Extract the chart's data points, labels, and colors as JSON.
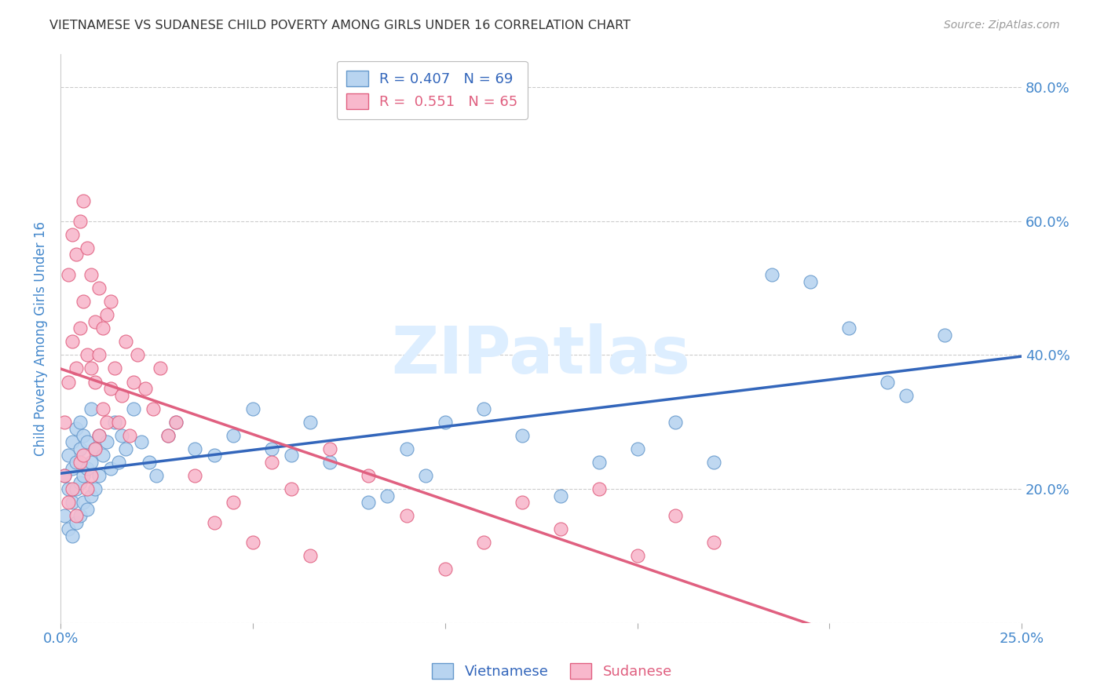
{
  "title": "VIETNAMESE VS SUDANESE CHILD POVERTY AMONG GIRLS UNDER 16 CORRELATION CHART",
  "source": "Source: ZipAtlas.com",
  "ylabel": "Child Poverty Among Girls Under 16",
  "xlim": [
    0.0,
    0.25
  ],
  "ylim": [
    0.0,
    0.85
  ],
  "xticks": [
    0.0,
    0.05,
    0.1,
    0.15,
    0.2,
    0.25
  ],
  "xticklabels": [
    "0.0%",
    "",
    "",
    "",
    "",
    "25.0%"
  ],
  "yticks": [
    0.0,
    0.2,
    0.4,
    0.6,
    0.8
  ],
  "yticklabels": [
    "",
    "20.0%",
    "40.0%",
    "60.0%",
    "80.0%"
  ],
  "vietnamese_label": "Vietnamese",
  "sudanese_label": "Sudanese",
  "viet_color": "#b8d4f0",
  "viet_edge": "#6699cc",
  "sud_color": "#f8b8cc",
  "sud_edge": "#e06080",
  "viet_line_color": "#3366bb",
  "sud_line_color": "#e06080",
  "grid_color": "#cccccc",
  "watermark": "ZIPatlas",
  "watermark_color": "#ddeeff",
  "title_color": "#333333",
  "axis_label_color": "#4488cc",
  "tick_color": "#4488cc",
  "background_color": "#ffffff",
  "viet_R": 0.407,
  "viet_N": 69,
  "sud_R": 0.551,
  "sud_N": 65,
  "viet_x": [
    0.001,
    0.001,
    0.002,
    0.002,
    0.002,
    0.003,
    0.003,
    0.003,
    0.003,
    0.004,
    0.004,
    0.004,
    0.004,
    0.005,
    0.005,
    0.005,
    0.005,
    0.006,
    0.006,
    0.006,
    0.007,
    0.007,
    0.007,
    0.008,
    0.008,
    0.008,
    0.009,
    0.009,
    0.01,
    0.01,
    0.011,
    0.012,
    0.013,
    0.014,
    0.015,
    0.016,
    0.017,
    0.019,
    0.021,
    0.023,
    0.025,
    0.028,
    0.03,
    0.035,
    0.04,
    0.045,
    0.05,
    0.055,
    0.06,
    0.065,
    0.07,
    0.08,
    0.085,
    0.09,
    0.095,
    0.1,
    0.11,
    0.12,
    0.13,
    0.14,
    0.15,
    0.16,
    0.17,
    0.185,
    0.195,
    0.205,
    0.215,
    0.22,
    0.23
  ],
  "viet_y": [
    0.16,
    0.22,
    0.14,
    0.2,
    0.25,
    0.13,
    0.18,
    0.23,
    0.27,
    0.15,
    0.2,
    0.24,
    0.29,
    0.16,
    0.21,
    0.26,
    0.3,
    0.18,
    0.22,
    0.28,
    0.17,
    0.23,
    0.27,
    0.19,
    0.24,
    0.32,
    0.2,
    0.26,
    0.22,
    0.28,
    0.25,
    0.27,
    0.23,
    0.3,
    0.24,
    0.28,
    0.26,
    0.32,
    0.27,
    0.24,
    0.22,
    0.28,
    0.3,
    0.26,
    0.25,
    0.28,
    0.32,
    0.26,
    0.25,
    0.3,
    0.24,
    0.18,
    0.19,
    0.26,
    0.22,
    0.3,
    0.32,
    0.28,
    0.19,
    0.24,
    0.26,
    0.3,
    0.24,
    0.52,
    0.51,
    0.44,
    0.36,
    0.34,
    0.43
  ],
  "sud_x": [
    0.001,
    0.001,
    0.002,
    0.002,
    0.002,
    0.003,
    0.003,
    0.003,
    0.004,
    0.004,
    0.004,
    0.005,
    0.005,
    0.005,
    0.006,
    0.006,
    0.006,
    0.007,
    0.007,
    0.007,
    0.008,
    0.008,
    0.008,
    0.009,
    0.009,
    0.009,
    0.01,
    0.01,
    0.01,
    0.011,
    0.011,
    0.012,
    0.012,
    0.013,
    0.013,
    0.014,
    0.015,
    0.016,
    0.017,
    0.018,
    0.019,
    0.02,
    0.022,
    0.024,
    0.026,
    0.028,
    0.03,
    0.035,
    0.04,
    0.045,
    0.05,
    0.055,
    0.06,
    0.065,
    0.07,
    0.08,
    0.09,
    0.1,
    0.11,
    0.12,
    0.13,
    0.14,
    0.15,
    0.16,
    0.17
  ],
  "sud_y": [
    0.22,
    0.3,
    0.18,
    0.36,
    0.52,
    0.2,
    0.42,
    0.58,
    0.16,
    0.38,
    0.55,
    0.24,
    0.44,
    0.6,
    0.25,
    0.48,
    0.63,
    0.2,
    0.4,
    0.56,
    0.22,
    0.38,
    0.52,
    0.26,
    0.45,
    0.36,
    0.28,
    0.4,
    0.5,
    0.32,
    0.44,
    0.3,
    0.46,
    0.35,
    0.48,
    0.38,
    0.3,
    0.34,
    0.42,
    0.28,
    0.36,
    0.4,
    0.35,
    0.32,
    0.38,
    0.28,
    0.3,
    0.22,
    0.15,
    0.18,
    0.12,
    0.24,
    0.2,
    0.1,
    0.26,
    0.22,
    0.16,
    0.08,
    0.12,
    0.18,
    0.14,
    0.2,
    0.1,
    0.16,
    0.12
  ]
}
